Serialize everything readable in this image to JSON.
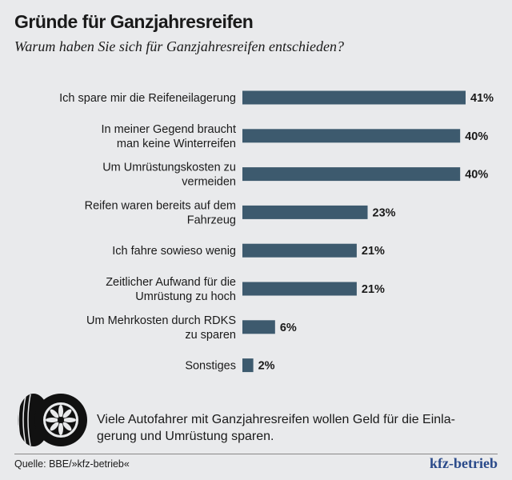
{
  "title": "Gründe für Ganzjahresreifen",
  "subtitle": "Warum haben Sie sich für Ganzjahresreifen entschieden?",
  "chart_data": {
    "type": "bar",
    "orientation": "horizontal",
    "categories": [
      [
        "Ich spare mir die Reifeneilagerung"
      ],
      [
        "In meiner Gegend braucht",
        "man keine Winterreifen"
      ],
      [
        "Um Umrüstungskosten zu",
        "vermeiden"
      ],
      [
        "Reifen waren bereits auf dem",
        "Fahrzeug"
      ],
      [
        "Ich fahre sowieso wenig"
      ],
      [
        "Zeitlicher Aufwand für die",
        "Umrüstung zu hoch"
      ],
      [
        "Um Mehrkosten durch RDKS",
        "zu sparen"
      ],
      [
        "Sonstiges"
      ]
    ],
    "values": [
      41,
      40,
      40,
      23,
      21,
      21,
      6,
      2
    ],
    "value_labels": [
      "41%",
      "40%",
      "40%",
      "23%",
      "21%",
      "21%",
      "6%",
      "2%"
    ],
    "unit": "%",
    "bar_color": "#3d5a6e",
    "grid": false
  },
  "note": "Viele Autofahrer mit Ganzjahresreifen wollen Geld für die Einla-gerung und Umrüstung sparen.",
  "source": "Quelle: BBE/»kfz-betrieb«",
  "brand": "kfz-betrieb",
  "icon": "tires-icon",
  "colors": {
    "background": "#e9eaec",
    "brand": "#2a4a8a"
  }
}
